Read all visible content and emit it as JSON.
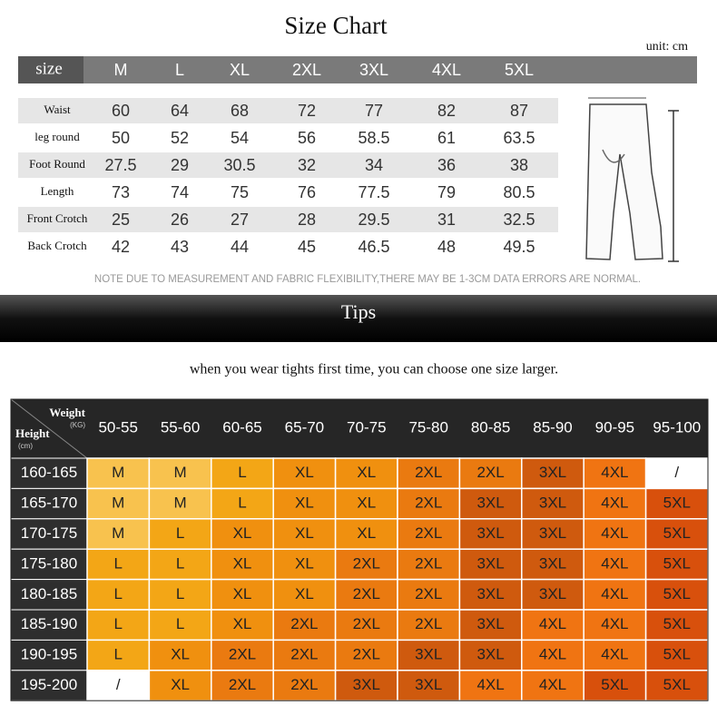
{
  "title": "Size Chart",
  "unit": "unit: cm",
  "measure_table": {
    "header": "size",
    "sizes": [
      "M",
      "L",
      "XL",
      "2XL",
      "3XL",
      "4XL",
      "5XL"
    ],
    "rows": [
      {
        "label": "Waist",
        "values": [
          60,
          64,
          68,
          72,
          77,
          82,
          87
        ]
      },
      {
        "label": "leg round",
        "values": [
          50,
          52,
          54,
          56,
          58.5,
          61,
          63.5
        ]
      },
      {
        "label": "Foot Round",
        "values": [
          27.5,
          29,
          30.5,
          32,
          34,
          36,
          38
        ]
      },
      {
        "label": "Length",
        "values": [
          73,
          74,
          75,
          76,
          77.5,
          79,
          80.5
        ]
      },
      {
        "label": "Front Crotch",
        "values": [
          25,
          26,
          27,
          28,
          29.5,
          31,
          32.5
        ]
      },
      {
        "label": "Back Crotch",
        "values": [
          42,
          43,
          44,
          45,
          46.5,
          48,
          49.5
        ]
      }
    ]
  },
  "note": "NOTE DUE TO MEASUREMENT AND FABRIC FLEXIBILITY,THERE MAY BE 1-3CM DATA ERRORS ARE NORMAL.",
  "tips": {
    "title": "Tips",
    "text": "when you wear tights first time, you can choose one size larger."
  },
  "size_grid": {
    "weight_label": "Weight",
    "weight_unit": "(KG)",
    "height_label": "Height",
    "height_unit": "(cm)",
    "weights": [
      "50-55",
      "55-60",
      "60-65",
      "65-70",
      "70-75",
      "75-80",
      "80-85",
      "85-90",
      "90-95",
      "95-100"
    ],
    "colors": {
      "M": "#f8c24e",
      "L": "#f3a616",
      "XL": "#f0900f",
      "2XL": "#ea7a10",
      "3XL": "#cf5a0e",
      "4XL": "#f07412",
      "5XL": "#d8500c",
      "/": "#ffffff"
    },
    "rows": [
      {
        "height": "160-165",
        "cells": [
          "M",
          "M",
          "L",
          "XL",
          "XL",
          "2XL",
          "2XL",
          "3XL",
          "4XL",
          "/"
        ]
      },
      {
        "height": "165-170",
        "cells": [
          "M",
          "M",
          "L",
          "XL",
          "XL",
          "2XL",
          "3XL",
          "3XL",
          "4XL",
          "5XL"
        ]
      },
      {
        "height": "170-175",
        "cells": [
          "M",
          "L",
          "XL",
          "XL",
          "XL",
          "2XL",
          "3XL",
          "3XL",
          "4XL",
          "5XL"
        ]
      },
      {
        "height": "175-180",
        "cells": [
          "L",
          "L",
          "XL",
          "XL",
          "2XL",
          "2XL",
          "3XL",
          "3XL",
          "4XL",
          "5XL"
        ]
      },
      {
        "height": "180-185",
        "cells": [
          "L",
          "L",
          "XL",
          "XL",
          "2XL",
          "2XL",
          "3XL",
          "3XL",
          "4XL",
          "5XL"
        ]
      },
      {
        "height": "185-190",
        "cells": [
          "L",
          "L",
          "XL",
          "2XL",
          "2XL",
          "2XL",
          "3XL",
          "4XL",
          "4XL",
          "5XL"
        ]
      },
      {
        "height": "190-195",
        "cells": [
          "L",
          "XL",
          "2XL",
          "2XL",
          "2XL",
          "3XL",
          "3XL",
          "4XL",
          "4XL",
          "5XL"
        ]
      },
      {
        "height": "195-200",
        "cells": [
          "/",
          "XL",
          "2XL",
          "2XL",
          "3XL",
          "3XL",
          "4XL",
          "4XL",
          "5XL",
          "5XL"
        ]
      }
    ]
  }
}
